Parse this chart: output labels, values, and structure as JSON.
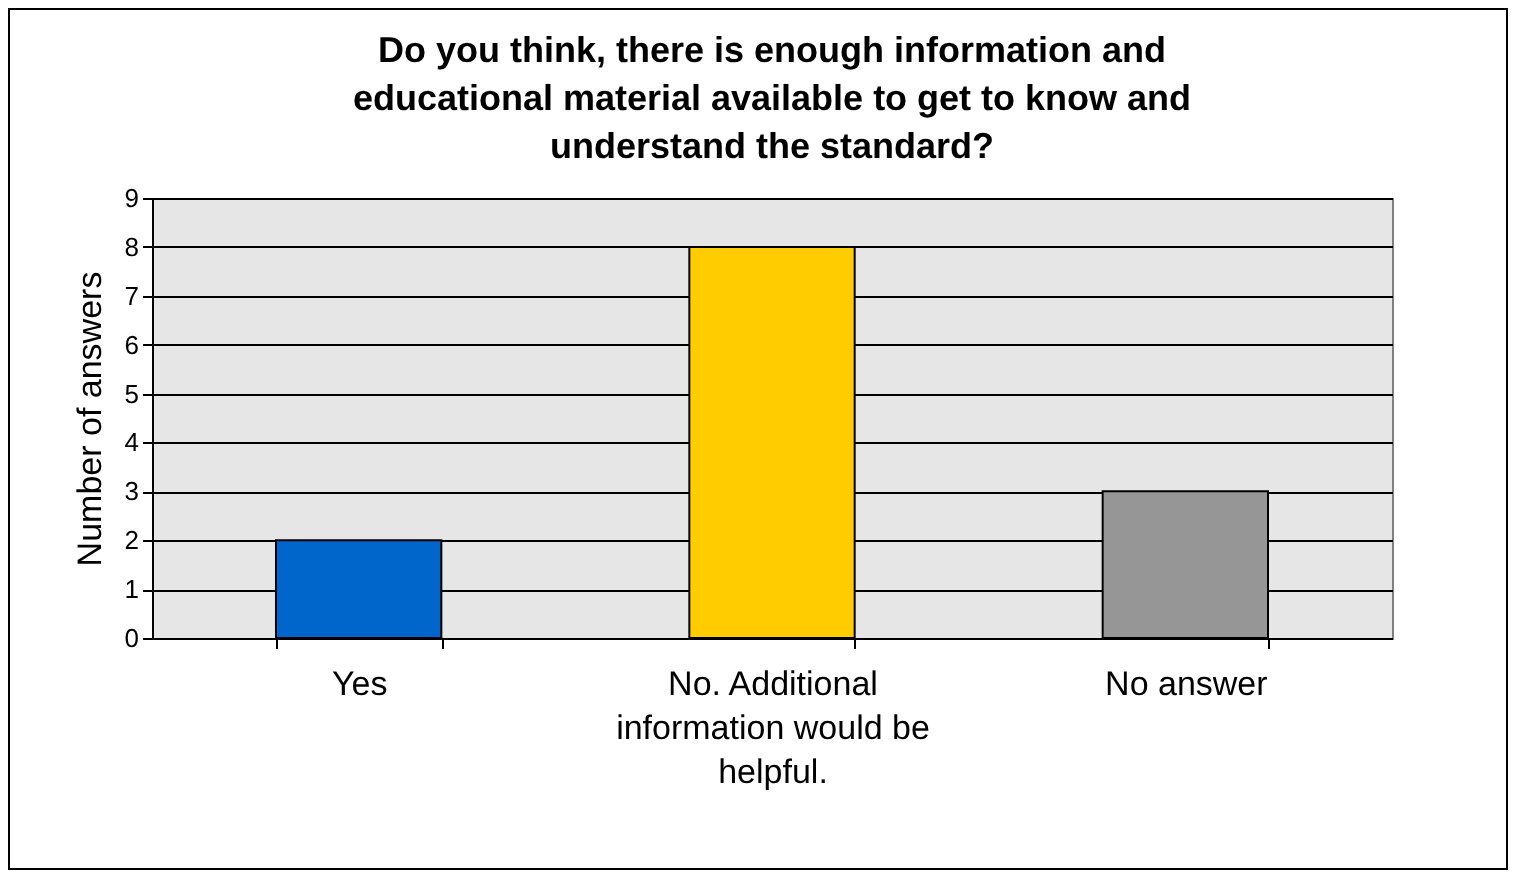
{
  "chart_data": {
    "type": "bar",
    "title": "Do you think, there is enough information and educational material available to get to know and understand the standard?",
    "ylabel": "Number of answers",
    "categories": [
      "Yes",
      "No. Additional information would be helpful.",
      "No answer"
    ],
    "values": [
      2,
      8,
      3
    ],
    "colors": [
      "#0066cc",
      "#ffcc00",
      "#969696"
    ],
    "ylim": [
      0,
      9
    ],
    "yticks": [
      0,
      1,
      2,
      3,
      4,
      5,
      6,
      7,
      8,
      9
    ],
    "grid": "y",
    "legend": false
  }
}
